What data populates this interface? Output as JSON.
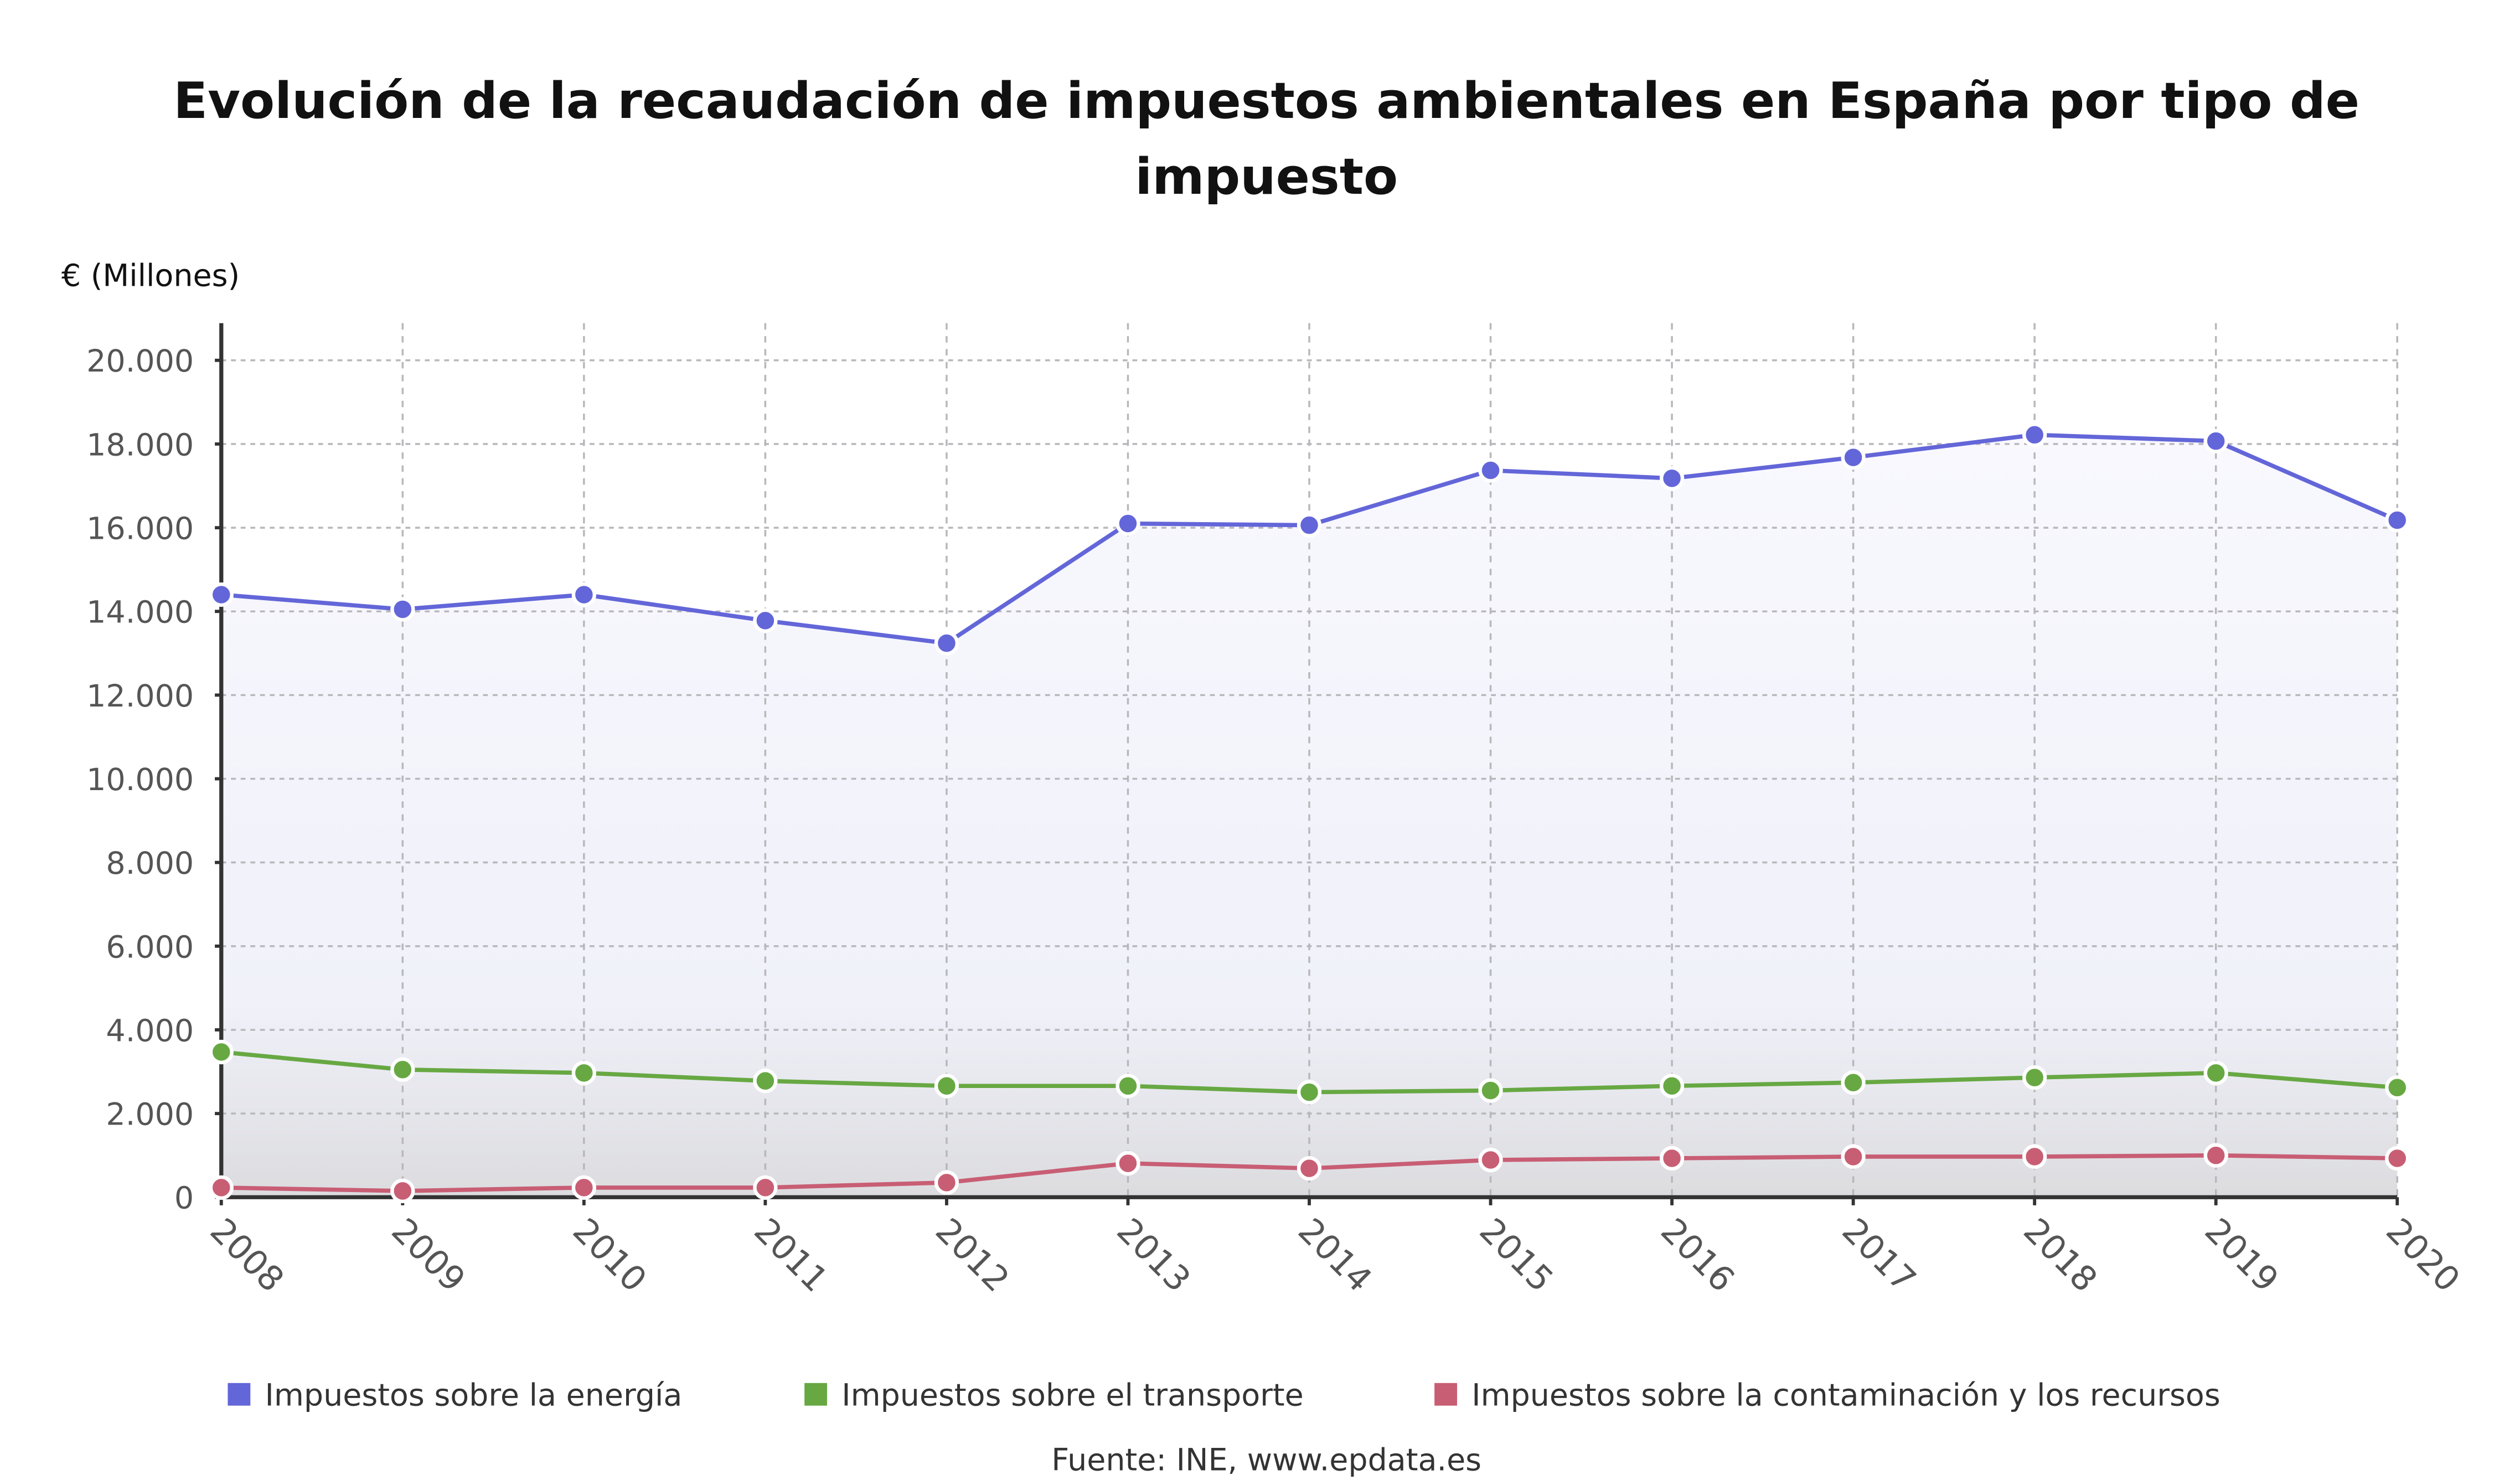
{
  "chart_data": {
    "type": "line",
    "title_line1": "Evolución de la recaudación de impuestos ambientales en España por tipo de",
    "title_line2": "impuesto",
    "ylabel": "€ (Millones)",
    "xlabel": "",
    "x": [
      "2008",
      "2009",
      "2010",
      "2011",
      "2012",
      "2013",
      "2014",
      "2015",
      "2016",
      "2017",
      "2018",
      "2019",
      "2020"
    ],
    "ylim": [
      0,
      20000
    ],
    "yticks": [
      0,
      2000,
      4000,
      6000,
      8000,
      10000,
      12000,
      14000,
      16000,
      18000,
      20000
    ],
    "ytick_labels": [
      "0",
      "2.000",
      "4.000",
      "6.000",
      "8.000",
      "10.000",
      "12.000",
      "14.000",
      "16.000",
      "18.000",
      "20.000"
    ],
    "grid": true,
    "legend_placement": "bottom",
    "series": [
      {
        "name": "Impuestos sobre la energía",
        "color": "#6366d8",
        "values": [
          14400,
          14050,
          14400,
          13780,
          13240,
          16100,
          16060,
          17370,
          17180,
          17680,
          18220,
          18070,
          16180
        ]
      },
      {
        "name": "Impuestos sobre el transporte",
        "color": "#67a843",
        "values": [
          3470,
          3050,
          2970,
          2780,
          2660,
          2660,
          2510,
          2550,
          2660,
          2740,
          2860,
          2970,
          2620
        ]
      },
      {
        "name": "Impuestos sobre la contaminación y los recursos",
        "color": "#c85e74",
        "values": [
          230,
          150,
          230,
          230,
          350,
          810,
          690,
          890,
          930,
          970,
          970,
          1000,
          930
        ]
      }
    ],
    "source": "Fuente: INE, www.epdata.es"
  }
}
